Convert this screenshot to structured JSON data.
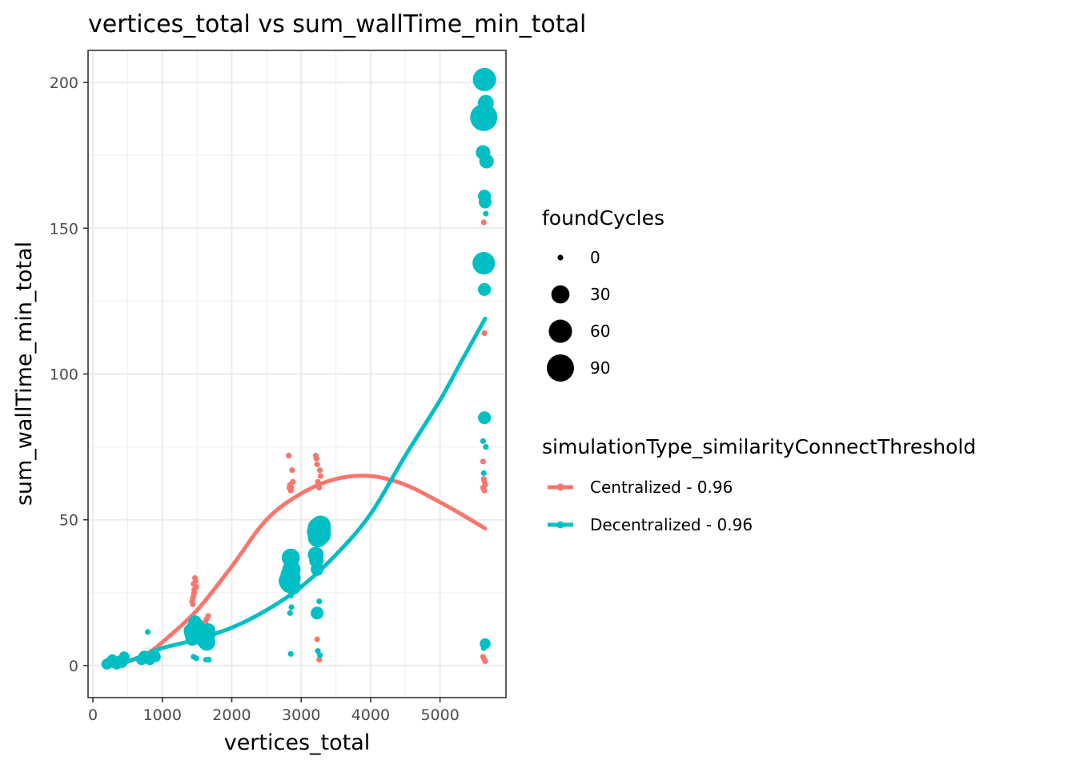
{
  "chart_data": {
    "type": "scatter",
    "title": "vertices_total  vs  sum_wallTime_min_total",
    "xlabel": "vertices_total",
    "ylabel": "sum_wallTime_min_total",
    "xlim": [
      -70,
      5950
    ],
    "ylim": [
      -11,
      211
    ],
    "xticks": [
      0,
      1000,
      2000,
      3000,
      4000,
      5000
    ],
    "yticks": [
      0,
      50,
      100,
      150,
      200
    ],
    "grid": true,
    "legend_position": "right",
    "size_legend": {
      "title": "foundCycles",
      "entries": [
        {
          "label": "0",
          "value": 0
        },
        {
          "label": "30",
          "value": 30
        },
        {
          "label": "60",
          "value": 60
        },
        {
          "label": "90",
          "value": 90
        }
      ]
    },
    "color_legend": {
      "title": "simulationType_similarityConnectThreshold"
    },
    "series": [
      {
        "name": "Centralized - 0.96",
        "color": "#F8766D",
        "points": [
          [
            220,
            0.5,
            0
          ],
          [
            260,
            1,
            0
          ],
          [
            300,
            0.8,
            0
          ],
          [
            340,
            0.5,
            0
          ],
          [
            380,
            1.2,
            0
          ],
          [
            420,
            1,
            0
          ],
          [
            460,
            1.5,
            0
          ],
          [
            740,
            3,
            0
          ],
          [
            790,
            4,
            0
          ],
          [
            850,
            3.5,
            0
          ],
          [
            1430,
            22,
            0
          ],
          [
            1450,
            24,
            0
          ],
          [
            1460,
            26,
            0
          ],
          [
            1440,
            21,
            0
          ],
          [
            1450,
            28,
            0
          ],
          [
            1470,
            30,
            0
          ],
          [
            1480,
            29,
            0
          ],
          [
            1490,
            27,
            0
          ],
          [
            1460,
            25,
            0
          ],
          [
            1440,
            23,
            0
          ],
          [
            1620,
            15,
            0
          ],
          [
            1640,
            16,
            0
          ],
          [
            1660,
            17,
            0
          ],
          [
            1630,
            14,
            0
          ],
          [
            1650,
            13,
            0
          ],
          [
            2820,
            72,
            0
          ],
          [
            2840,
            62,
            0
          ],
          [
            2850,
            60,
            0
          ],
          [
            2860,
            61,
            0
          ],
          [
            2870,
            67,
            0
          ],
          [
            2880,
            63,
            0
          ],
          [
            2830,
            61,
            0
          ],
          [
            3210,
            72,
            0
          ],
          [
            3220,
            71,
            0
          ],
          [
            3230,
            69,
            0
          ],
          [
            3240,
            63,
            0
          ],
          [
            3250,
            62,
            0
          ],
          [
            3260,
            61,
            0
          ],
          [
            3270,
            67,
            0
          ],
          [
            3280,
            65,
            0
          ],
          [
            3230,
            9,
            0
          ],
          [
            3260,
            2,
            0
          ],
          [
            5630,
            152,
            0
          ],
          [
            5640,
            114,
            0
          ],
          [
            5620,
            70,
            0
          ],
          [
            5630,
            64,
            0
          ],
          [
            5640,
            63,
            0
          ],
          [
            5650,
            62,
            0
          ],
          [
            5620,
            61,
            0
          ],
          [
            5640,
            60,
            0
          ],
          [
            5620,
            3,
            0
          ],
          [
            5640,
            2,
            0
          ],
          [
            5650,
            1.5,
            0
          ]
        ],
        "fit": [
          [
            300,
            0
          ],
          [
            700,
            3
          ],
          [
            1000,
            8
          ],
          [
            1500,
            19
          ],
          [
            2000,
            34
          ],
          [
            2500,
            50
          ],
          [
            3000,
            59
          ],
          [
            3500,
            64
          ],
          [
            4000,
            65
          ],
          [
            4500,
            62
          ],
          [
            5000,
            56
          ],
          [
            5300,
            52
          ],
          [
            5650,
            47
          ]
        ]
      },
      {
        "name": "Decentralized - 0.96",
        "color": "#00BFC4",
        "points": [
          [
            200,
            0.5,
            5
          ],
          [
            240,
            1,
            5
          ],
          [
            280,
            2,
            5
          ],
          [
            300,
            1,
            5
          ],
          [
            340,
            0.5,
            5
          ],
          [
            380,
            1.5,
            5
          ],
          [
            420,
            1,
            5
          ],
          [
            450,
            3,
            5
          ],
          [
            700,
            2,
            5
          ],
          [
            740,
            3,
            8
          ],
          [
            760,
            2.5,
            5
          ],
          [
            790,
            11.5,
            0
          ],
          [
            820,
            2,
            5
          ],
          [
            860,
            3,
            5
          ],
          [
            880,
            4,
            5
          ],
          [
            900,
            3,
            5
          ],
          [
            1400,
            12,
            10
          ],
          [
            1420,
            11,
            15
          ],
          [
            1440,
            10,
            20
          ],
          [
            1460,
            13,
            20
          ],
          [
            1480,
            12,
            15
          ],
          [
            1500,
            14,
            10
          ],
          [
            1430,
            9,
            10
          ],
          [
            1470,
            15,
            10
          ],
          [
            1450,
            3,
            0
          ],
          [
            1490,
            2.5,
            0
          ],
          [
            1600,
            9,
            25
          ],
          [
            1620,
            10,
            20
          ],
          [
            1640,
            8,
            25
          ],
          [
            1660,
            12,
            15
          ],
          [
            1680,
            11,
            10
          ],
          [
            1630,
            2,
            0
          ],
          [
            1670,
            2,
            0
          ],
          [
            2820,
            29,
            40
          ],
          [
            2840,
            31,
            35
          ],
          [
            2860,
            33,
            30
          ],
          [
            2850,
            37,
            30
          ],
          [
            2870,
            30,
            25
          ],
          [
            2830,
            28,
            30
          ],
          [
            2880,
            27,
            20
          ],
          [
            2850,
            24,
            0
          ],
          [
            2860,
            20,
            0
          ],
          [
            2840,
            18,
            0
          ],
          [
            2850,
            4,
            0
          ],
          [
            3210,
            38,
            20
          ],
          [
            3220,
            36,
            15
          ],
          [
            3230,
            33,
            10
          ],
          [
            3250,
            46,
            60
          ],
          [
            3260,
            47,
            60
          ],
          [
            3270,
            45,
            50
          ],
          [
            3280,
            48,
            40
          ],
          [
            3240,
            44,
            40
          ],
          [
            3230,
            18,
            10
          ],
          [
            3260,
            22,
            0
          ],
          [
            3240,
            5,
            0
          ],
          [
            3270,
            3.5,
            0
          ],
          [
            5640,
            201,
            60
          ],
          [
            5630,
            188,
            90
          ],
          [
            5660,
            193,
            20
          ],
          [
            5650,
            190,
            30
          ],
          [
            5620,
            176,
            15
          ],
          [
            5670,
            173,
            15
          ],
          [
            5640,
            161,
            10
          ],
          [
            5650,
            159,
            10
          ],
          [
            5660,
            155,
            0
          ],
          [
            5630,
            138,
            55
          ],
          [
            5640,
            129,
            10
          ],
          [
            5640,
            85,
            10
          ],
          [
            5620,
            77,
            0
          ],
          [
            5660,
            75,
            0
          ],
          [
            5630,
            66,
            0
          ],
          [
            5650,
            7.5,
            5
          ],
          [
            5630,
            6,
            0
          ]
        ],
        "fit": [
          [
            300,
            0
          ],
          [
            500,
            1.5
          ],
          [
            800,
            4
          ],
          [
            1000,
            6
          ],
          [
            1500,
            9
          ],
          [
            2000,
            13
          ],
          [
            2500,
            19
          ],
          [
            3000,
            27
          ],
          [
            3500,
            38
          ],
          [
            4000,
            52
          ],
          [
            4500,
            72
          ],
          [
            5000,
            91
          ],
          [
            5300,
            104
          ],
          [
            5650,
            119
          ]
        ]
      }
    ]
  }
}
